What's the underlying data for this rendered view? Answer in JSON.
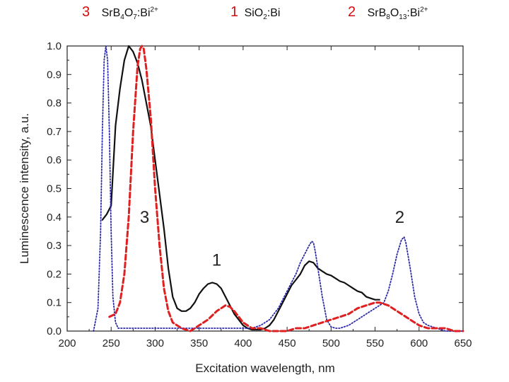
{
  "header": {
    "items": [
      {
        "number": "3",
        "formula": {
          "a": "SrB",
          "s1": "4",
          "b": "O",
          "s2": "7",
          "c": ":Bi",
          "sup": "2+"
        }
      },
      {
        "number": "1",
        "formula": {
          "a": "SiO",
          "s1": "2",
          "b": ":Bi",
          "s2": "",
          "c": "",
          "sup": ""
        }
      },
      {
        "number": "2",
        "formula": {
          "a": "SrB",
          "s1": "8",
          "b": "O",
          "s2": "13",
          "c": ":Bi",
          "sup": "2+"
        }
      }
    ]
  },
  "colors": {
    "curve1": "#111111",
    "curve2": "#2a2aa8",
    "curve3": "#e02020",
    "axis": "#222222",
    "header_number": "#d01010"
  },
  "chart_data": {
    "type": "line",
    "xlabel": "Excitation wavelength, nm",
    "ylabel": "Luminescence intensity, a.u.",
    "xlim": [
      200,
      650
    ],
    "ylim": [
      0.0,
      1.0
    ],
    "xticks": [
      "200",
      "250",
      "300",
      "350",
      "400",
      "450",
      "500",
      "550",
      "600",
      "650"
    ],
    "yticks": [
      "0.0",
      "0.1",
      "0.2",
      "0.3",
      "0.4",
      "0.5",
      "0.6",
      "0.7",
      "0.8",
      "0.9",
      "1.0"
    ],
    "series": [
      {
        "name": "1",
        "label": "1",
        "style": "solid",
        "color": "#111111",
        "label_pos": {
          "x": 370,
          "y": 0.23
        },
        "x": [
          240,
          245,
          250,
          255,
          260,
          265,
          270,
          275,
          280,
          285,
          290,
          295,
          300,
          305,
          310,
          315,
          320,
          325,
          330,
          335,
          340,
          345,
          350,
          355,
          360,
          365,
          370,
          375,
          380,
          385,
          390,
          395,
          400,
          405,
          410,
          415,
          420,
          425,
          430,
          435,
          440,
          445,
          450,
          455,
          460,
          465,
          470,
          475,
          480,
          485,
          490,
          495,
          500,
          505,
          510,
          515,
          520,
          525,
          530,
          535,
          540,
          545,
          550,
          555
        ],
        "y": [
          0.39,
          0.41,
          0.44,
          0.72,
          0.85,
          0.95,
          1.0,
          0.98,
          0.94,
          0.88,
          0.8,
          0.72,
          0.6,
          0.48,
          0.36,
          0.22,
          0.12,
          0.08,
          0.07,
          0.07,
          0.08,
          0.1,
          0.13,
          0.15,
          0.165,
          0.17,
          0.165,
          0.15,
          0.12,
          0.09,
          0.06,
          0.04,
          0.02,
          0.01,
          0.005,
          0.005,
          0.005,
          0.01,
          0.02,
          0.04,
          0.07,
          0.1,
          0.13,
          0.16,
          0.18,
          0.2,
          0.23,
          0.245,
          0.24,
          0.22,
          0.21,
          0.2,
          0.195,
          0.185,
          0.175,
          0.17,
          0.16,
          0.15,
          0.14,
          0.135,
          0.12,
          0.115,
          0.11,
          0.11
        ]
      },
      {
        "name": "2",
        "label": "2",
        "style": "dotted",
        "color": "#2a2aa8",
        "label_pos": {
          "x": 578,
          "y": 0.38
        },
        "x": [
          230,
          235,
          238,
          240,
          242,
          244,
          246,
          248,
          250,
          252,
          255,
          258,
          260,
          270,
          280,
          300,
          320,
          340,
          360,
          380,
          400,
          410,
          420,
          430,
          440,
          445,
          450,
          455,
          460,
          465,
          470,
          475,
          478,
          480,
          482,
          485,
          490,
          495,
          500,
          505,
          510,
          520,
          530,
          540,
          550,
          555,
          560,
          565,
          570,
          575,
          580,
          583,
          585,
          590,
          595,
          600,
          605,
          610,
          620,
          630,
          640,
          650
        ],
        "y": [
          0.0,
          0.08,
          0.35,
          0.7,
          0.95,
          1.0,
          0.95,
          0.7,
          0.35,
          0.12,
          0.03,
          0.01,
          0.01,
          0.01,
          0.01,
          0.01,
          0.01,
          0.01,
          0.01,
          0.01,
          0.01,
          0.01,
          0.02,
          0.04,
          0.08,
          0.11,
          0.14,
          0.17,
          0.2,
          0.24,
          0.27,
          0.3,
          0.315,
          0.31,
          0.28,
          0.22,
          0.12,
          0.04,
          0.015,
          0.01,
          0.01,
          0.02,
          0.04,
          0.06,
          0.08,
          0.09,
          0.1,
          0.14,
          0.2,
          0.27,
          0.32,
          0.33,
          0.31,
          0.22,
          0.12,
          0.06,
          0.03,
          0.02,
          0.01,
          0.0,
          0.0,
          0.0
        ]
      },
      {
        "name": "3",
        "label": "3",
        "style": "dashed",
        "color": "#e02020",
        "label_pos": {
          "x": 288,
          "y": 0.38
        },
        "x": [
          248,
          255,
          260,
          265,
          270,
          275,
          280,
          283,
          285,
          287,
          290,
          295,
          300,
          305,
          310,
          315,
          320,
          330,
          340,
          350,
          360,
          370,
          375,
          380,
          385,
          390,
          395,
          400,
          410,
          420,
          430,
          440,
          450,
          460,
          470,
          480,
          490,
          500,
          510,
          520,
          530,
          540,
          550,
          555,
          560,
          565,
          570,
          580,
          590,
          600,
          610,
          620,
          630,
          640,
          650
        ],
        "y": [
          0.05,
          0.06,
          0.1,
          0.2,
          0.4,
          0.7,
          0.93,
          0.99,
          1.0,
          0.99,
          0.92,
          0.75,
          0.5,
          0.3,
          0.15,
          0.07,
          0.03,
          0.01,
          0.0,
          0.02,
          0.04,
          0.07,
          0.08,
          0.09,
          0.085,
          0.07,
          0.05,
          0.03,
          0.01,
          0.01,
          0.0,
          0.0,
          0.0,
          0.01,
          0.01,
          0.02,
          0.03,
          0.04,
          0.05,
          0.06,
          0.08,
          0.09,
          0.1,
          0.1,
          0.095,
          0.09,
          0.08,
          0.06,
          0.04,
          0.02,
          0.01,
          0.01,
          0.01,
          0.0,
          0.0
        ]
      }
    ]
  }
}
